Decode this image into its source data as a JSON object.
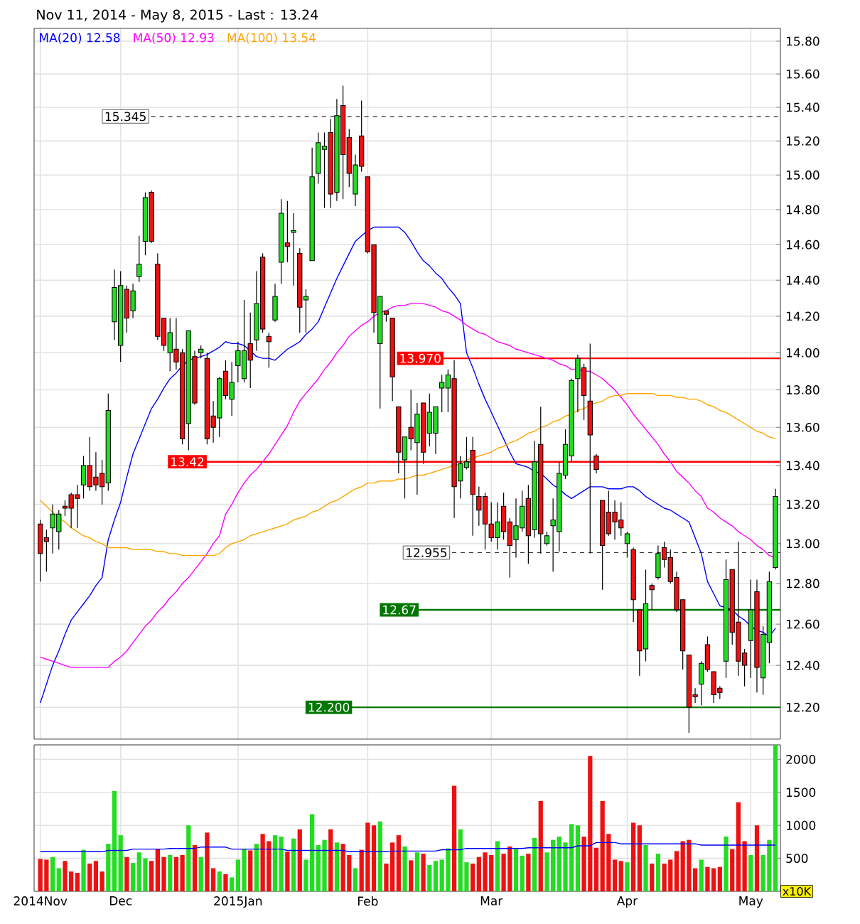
{
  "chart_data": [
    {
      "type": "candlestick",
      "title": "Nov 11, 2014 - May 8, 2015 - Last : 13.24",
      "categories": [
        null,
        null,
        null,
        null,
        null,
        null,
        null,
        null,
        null,
        null,
        null,
        null,
        null,
        null,
        null,
        null,
        null,
        null,
        null,
        null,
        null,
        null,
        null,
        null,
        null,
        null,
        null,
        null,
        null,
        null,
        null,
        null,
        null,
        null,
        null,
        null,
        null,
        null,
        null,
        null,
        null,
        null,
        null,
        null,
        null,
        null,
        null,
        null,
        null,
        null,
        null,
        null,
        null,
        null,
        null,
        null,
        null,
        null,
        null,
        null,
        null,
        null,
        null,
        null,
        null,
        null,
        null,
        null,
        null,
        null,
        null,
        null,
        null,
        null,
        null,
        null,
        null,
        null,
        null,
        null,
        null,
        null,
        null,
        null,
        null,
        null,
        null,
        null,
        null,
        null,
        null,
        null,
        null,
        null,
        null,
        null,
        null,
        null,
        null,
        null,
        null,
        null,
        null,
        null,
        null,
        null,
        null,
        null,
        null,
        null,
        null,
        null,
        null,
        null,
        null,
        null,
        null,
        null,
        null,
        null
      ],
      "ohlc": [
        [
          13.1,
          13.12,
          12.81,
          12.95
        ],
        [
          13.03,
          13.07,
          12.86,
          13.01
        ],
        [
          13.08,
          13.2,
          12.95,
          13.15
        ],
        [
          13.06,
          13.17,
          12.97,
          13.15
        ],
        [
          13.19,
          13.22,
          13.14,
          13.18
        ],
        [
          13.25,
          13.26,
          13.08,
          13.18
        ],
        [
          13.25,
          13.3,
          13.08,
          13.23
        ],
        [
          13.3,
          13.45,
          13.23,
          13.4
        ],
        [
          13.4,
          13.55,
          13.27,
          13.29
        ],
        [
          13.34,
          13.47,
          13.27,
          13.3
        ],
        [
          13.36,
          13.43,
          13.2,
          13.29
        ],
        [
          13.31,
          13.78,
          13.27,
          13.69
        ],
        [
          14.17,
          14.46,
          14.07,
          14.36
        ],
        [
          14.04,
          14.45,
          13.95,
          14.37
        ],
        [
          14.35,
          14.37,
          14.11,
          14.19
        ],
        [
          14.23,
          14.38,
          14.19,
          14.34
        ],
        [
          14.42,
          14.65,
          14.39,
          14.49
        ],
        [
          14.62,
          14.9,
          14.54,
          14.87
        ],
        [
          14.9,
          14.91,
          14.61,
          14.62
        ],
        [
          14.49,
          14.55,
          14.07,
          14.09
        ],
        [
          14.19,
          14.19,
          14.01,
          14.04
        ],
        [
          14.0,
          14.19,
          13.9,
          14.11
        ],
        [
          14.02,
          14.19,
          13.91,
          13.95
        ],
        [
          14.0,
          14.02,
          13.51,
          13.54
        ],
        [
          13.62,
          14.12,
          13.48,
          14.12
        ],
        [
          13.98,
          14.01,
          13.72,
          13.73
        ],
        [
          14.0,
          14.04,
          13.97,
          14.02
        ],
        [
          13.97,
          14.0,
          13.51,
          13.54
        ],
        [
          13.66,
          13.74,
          13.52,
          13.6
        ],
        [
          13.65,
          13.87,
          13.55,
          13.86
        ],
        [
          13.9,
          13.96,
          13.75,
          13.77
        ],
        [
          13.75,
          13.95,
          13.66,
          13.84
        ],
        [
          13.93,
          14.06,
          13.84,
          14.01
        ],
        [
          13.86,
          14.29,
          13.84,
          14.01
        ],
        [
          14.05,
          14.22,
          13.81,
          13.96
        ],
        [
          14.07,
          14.45,
          14.01,
          14.27
        ],
        [
          14.53,
          14.55,
          14.11,
          14.13
        ],
        [
          14.09,
          14.11,
          13.92,
          14.06
        ],
        [
          14.18,
          14.38,
          14.17,
          14.31
        ],
        [
          14.5,
          14.86,
          14.38,
          14.78
        ],
        [
          14.61,
          14.85,
          14.5,
          14.59
        ],
        [
          14.67,
          14.78,
          14.37,
          14.68
        ],
        [
          14.55,
          14.58,
          14.11,
          14.25
        ],
        [
          14.29,
          14.35,
          14.11,
          14.31
        ],
        [
          14.51,
          15.16,
          14.51,
          14.99
        ],
        [
          15.01,
          15.25,
          14.95,
          15.19
        ],
        [
          15.15,
          15.25,
          14.81,
          15.17
        ],
        [
          15.25,
          15.33,
          14.81,
          14.89
        ],
        [
          14.9,
          15.45,
          14.85,
          15.35
        ],
        [
          15.41,
          15.53,
          14.86,
          15.12
        ],
        [
          15.22,
          15.27,
          14.93,
          15.01
        ],
        [
          14.89,
          15.12,
          14.82,
          15.06
        ],
        [
          15.23,
          15.44,
          15.02,
          15.05
        ],
        [
          14.99,
          14.99,
          14.55,
          14.56
        ],
        [
          14.6,
          14.6,
          14.11,
          14.22
        ],
        [
          14.05,
          14.31,
          13.7,
          14.31
        ],
        [
          14.23,
          14.23,
          14.17,
          14.21
        ],
        [
          14.19,
          14.19,
          13.74,
          13.87
        ],
        [
          13.71,
          13.71,
          13.36,
          13.47
        ],
        [
          13.43,
          13.55,
          13.23,
          13.55
        ],
        [
          13.6,
          13.8,
          13.48,
          13.54
        ],
        [
          13.52,
          13.73,
          13.25,
          13.67
        ],
        [
          13.73,
          13.73,
          13.41,
          13.47
        ],
        [
          13.57,
          13.78,
          13.5,
          13.68
        ],
        [
          13.57,
          13.71,
          13.46,
          13.71
        ],
        [
          13.81,
          13.88,
          13.68,
          13.84
        ],
        [
          13.81,
          13.91,
          13.68,
          13.88
        ],
        [
          13.86,
          13.96,
          13.13,
          13.29
        ],
        [
          13.32,
          13.45,
          13.23,
          13.41
        ],
        [
          13.39,
          13.55,
          13.38,
          13.42
        ],
        [
          13.48,
          13.55,
          13.04,
          13.25
        ],
        [
          13.24,
          13.29,
          13.09,
          13.17
        ],
        [
          13.24,
          13.26,
          12.97,
          13.1
        ],
        [
          13.1,
          13.21,
          13.01,
          13.03
        ],
        [
          13.03,
          13.21,
          12.97,
          13.11
        ],
        [
          13.19,
          13.26,
          13.02,
          13.06
        ],
        [
          13.11,
          13.13,
          12.83,
          12.99
        ],
        [
          13.02,
          13.23,
          12.93,
          13.09
        ],
        [
          13.08,
          13.27,
          13.06,
          13.19
        ],
        [
          13.23,
          13.3,
          12.9,
          13.04
        ],
        [
          13.07,
          13.53,
          13.03,
          13.42
        ],
        [
          13.51,
          13.71,
          12.95,
          13.05
        ],
        [
          13.0,
          13.06,
          12.99,
          13.04
        ],
        [
          13.09,
          13.23,
          12.86,
          13.12
        ],
        [
          13.06,
          13.42,
          12.96,
          13.36
        ],
        [
          13.35,
          13.59,
          13.33,
          13.51
        ],
        [
          13.45,
          13.86,
          13.42,
          13.85
        ],
        [
          13.86,
          13.99,
          13.68,
          13.97
        ],
        [
          13.92,
          13.94,
          13.64,
          13.77
        ],
        [
          13.74,
          14.05,
          12.95,
          13.56
        ],
        [
          13.45,
          13.46,
          13.36,
          13.38
        ],
        [
          13.22,
          13.22,
          12.77,
          12.99
        ],
        [
          13.16,
          13.27,
          13.04,
          13.05
        ],
        [
          13.16,
          13.22,
          13.02,
          13.11
        ],
        [
          13.12,
          13.21,
          13.04,
          13.08
        ],
        [
          13.0,
          13.06,
          12.93,
          13.05
        ],
        [
          12.97,
          12.98,
          12.61,
          12.72
        ],
        [
          12.67,
          12.67,
          12.35,
          12.47
        ],
        [
          12.48,
          12.87,
          12.42,
          12.7
        ],
        [
          12.79,
          12.8,
          12.67,
          12.77
        ],
        [
          12.83,
          12.99,
          12.82,
          12.95
        ],
        [
          12.98,
          13.01,
          12.88,
          12.92
        ],
        [
          12.93,
          12.97,
          12.8,
          12.81
        ],
        [
          12.83,
          12.86,
          12.66,
          12.67
        ],
        [
          12.72,
          12.72,
          12.38,
          12.47
        ],
        [
          12.45,
          12.45,
          12.08,
          12.2
        ],
        [
          12.26,
          12.29,
          12.22,
          12.25
        ],
        [
          12.31,
          12.42,
          12.21,
          12.41
        ],
        [
          12.5,
          12.54,
          12.37,
          12.38
        ],
        [
          12.37,
          12.37,
          12.22,
          12.26
        ],
        [
          12.29,
          12.3,
          12.24,
          12.27
        ],
        [
          12.42,
          12.92,
          12.34,
          12.82
        ],
        [
          12.87,
          12.87,
          12.5,
          12.56
        ],
        [
          12.61,
          13.01,
          12.35,
          12.42
        ],
        [
          12.46,
          12.48,
          12.3,
          12.4
        ],
        [
          12.52,
          12.82,
          12.34,
          12.67
        ],
        [
          12.76,
          12.82,
          12.27,
          12.39
        ],
        [
          12.34,
          12.59,
          12.26,
          12.55
        ],
        [
          12.51,
          12.86,
          12.41,
          12.81
        ],
        [
          12.88,
          13.28,
          12.87,
          13.24
        ]
      ],
      "colors": [
        "#ee1111",
        "#ee1111",
        "#22dd22",
        "#22dd22",
        "#ee1111",
        "#ee1111",
        "#ee1111",
        "#22dd22",
        "#ee1111",
        "#ee1111",
        "#ee1111",
        "#22dd22",
        "#22dd22",
        "#22dd22",
        "#ee1111",
        "#22dd22",
        "#22dd22",
        "#22dd22",
        "#ee1111",
        "#ee1111",
        "#ee1111",
        "#22dd22",
        "#ee1111",
        "#ee1111",
        "#22dd22",
        "#ee1111",
        "#22dd22",
        "#ee1111",
        "#ee1111",
        "#22dd22",
        "#ee1111",
        "#22dd22",
        "#22dd22",
        "#22dd22",
        "#ee1111",
        "#22dd22",
        "#ee1111",
        "#ee1111",
        "#22dd22",
        "#22dd22",
        "#ee1111",
        "#22dd22",
        "#ee1111",
        "#22dd22",
        "#22dd22",
        "#22dd22",
        "#22dd22",
        "#ee1111",
        "#22dd22",
        "#ee1111",
        "#ee1111",
        "#22dd22",
        "#ee1111",
        "#ee1111",
        "#ee1111",
        "#22dd22",
        "#ee1111",
        "#ee1111",
        "#ee1111",
        "#22dd22",
        "#ee1111",
        "#22dd22",
        "#ee1111",
        "#22dd22",
        "#22dd22",
        "#22dd22",
        "#22dd22",
        "#ee1111",
        "#22dd22",
        "#22dd22",
        "#ee1111",
        "#ee1111",
        "#ee1111",
        "#ee1111",
        "#22dd22",
        "#ee1111",
        "#ee1111",
        "#22dd22",
        "#22dd22",
        "#ee1111",
        "#22dd22",
        "#ee1111",
        "#22dd22",
        "#22dd22",
        "#22dd22",
        "#22dd22",
        "#22dd22",
        "#22dd22",
        "#ee1111",
        "#ee1111",
        "#ee1111",
        "#ee1111",
        "#ee1111",
        "#ee1111",
        "#ee1111",
        "#22dd22",
        "#ee1111",
        "#ee1111",
        "#22dd22",
        "#ee1111",
        "#22dd22",
        "#ee1111",
        "#ee1111",
        "#ee1111",
        "#ee1111",
        "#ee1111",
        "#ee1111",
        "#22dd22",
        "#ee1111",
        "#ee1111",
        "#ee1111",
        "#22dd22",
        "#ee1111",
        "#ee1111",
        "#ee1111",
        "#22dd22",
        "#ee1111",
        "#22dd22",
        "#22dd22",
        "#22dd22"
      ],
      "series": [
        {
          "name": "MA(20)  12.58",
          "type": "line",
          "color": "#0000ff",
          "values": [
            12.22,
            12.31,
            12.4,
            12.47,
            12.55,
            12.62,
            12.66,
            12.7,
            12.74,
            12.79,
            12.83,
            13.02,
            13.12,
            13.21,
            13.34,
            13.46,
            13.54,
            13.62,
            13.7,
            13.75,
            13.81,
            13.86,
            13.89,
            13.93,
            13.96,
            13.97,
            13.98,
            13.99,
            14.01,
            14.03,
            14.06,
            14.05,
            14.05,
            14.04,
            14.01,
            13.98,
            13.97,
            13.97,
            13.96,
            13.99,
            14.02,
            14.04,
            14.06,
            14.1,
            14.13,
            14.17,
            14.25,
            14.33,
            14.41,
            14.48,
            14.55,
            14.62,
            14.65,
            14.68,
            14.7,
            14.7,
            14.7,
            14.7,
            14.7,
            14.67,
            14.62,
            14.56,
            14.51,
            14.48,
            14.44,
            14.41,
            14.36,
            14.32,
            14.27,
            14.0,
            13.92,
            13.83,
            13.75,
            13.68,
            13.61,
            13.54,
            13.47,
            13.41,
            13.4,
            13.39,
            13.37,
            13.36,
            13.33,
            13.3,
            13.28,
            13.25,
            13.23,
            13.25,
            13.27,
            13.29,
            13.29,
            13.29,
            13.28,
            13.28,
            13.28,
            13.29,
            13.29,
            13.27,
            13.24,
            13.22,
            13.2,
            13.18,
            13.17,
            13.15,
            13.13,
            13.11,
            13.03,
            12.95,
            12.81,
            12.75,
            12.69,
            12.68,
            12.67,
            12.64,
            12.62,
            12.59,
            12.57,
            12.56,
            12.54,
            12.58
          ]
        },
        {
          "name": "MA(50)  12.93",
          "type": "line",
          "color": "#ff00ff",
          "values": [
            12.44,
            12.43,
            12.42,
            12.41,
            12.4,
            12.39,
            12.39,
            12.39,
            12.39,
            12.39,
            12.39,
            12.39,
            12.42,
            12.44,
            12.47,
            12.51,
            12.55,
            12.59,
            12.62,
            12.66,
            12.69,
            12.73,
            12.76,
            12.8,
            12.83,
            12.87,
            12.91,
            12.95,
            13.0,
            13.04,
            13.15,
            13.2,
            13.26,
            13.31,
            13.35,
            13.38,
            13.42,
            13.46,
            13.51,
            13.56,
            13.61,
            13.68,
            13.74,
            13.78,
            13.82,
            13.86,
            13.91,
            13.95,
            14.0,
            14.04,
            14.09,
            14.12,
            14.15,
            14.17,
            14.2,
            14.22,
            14.23,
            14.25,
            14.26,
            14.26,
            14.27,
            14.27,
            14.27,
            14.26,
            14.25,
            14.23,
            14.22,
            14.2,
            14.18,
            14.15,
            14.13,
            14.11,
            14.1,
            14.08,
            14.06,
            14.05,
            14.04,
            14.02,
            14.01,
            14.0,
            13.99,
            13.98,
            13.97,
            13.96,
            13.94,
            13.93,
            13.91,
            13.91,
            13.9,
            13.9,
            13.88,
            13.86,
            13.83,
            13.8,
            13.76,
            13.72,
            13.67,
            13.63,
            13.59,
            13.55,
            13.51,
            13.46,
            13.42,
            13.37,
            13.34,
            13.31,
            13.27,
            13.24,
            13.18,
            13.16,
            13.13,
            13.11,
            13.09,
            13.06,
            13.04,
            13.02,
            12.99,
            12.97,
            12.94,
            12.93
          ]
        },
        {
          "name": "MA(100)  13.54",
          "type": "line",
          "color": "#ffa500",
          "values": [
            13.22,
            13.19,
            13.16,
            13.13,
            13.11,
            13.08,
            13.06,
            13.04,
            13.03,
            13.01,
            13.0,
            12.98,
            12.98,
            12.98,
            12.98,
            12.97,
            12.97,
            12.97,
            12.97,
            12.96,
            12.96,
            12.95,
            12.95,
            12.94,
            12.94,
            12.94,
            12.94,
            12.94,
            12.94,
            12.95,
            12.98,
            13.0,
            13.01,
            13.02,
            13.04,
            13.05,
            13.06,
            13.07,
            13.08,
            13.09,
            13.1,
            13.12,
            13.13,
            13.14,
            13.16,
            13.17,
            13.19,
            13.21,
            13.22,
            13.24,
            13.26,
            13.28,
            13.29,
            13.31,
            13.31,
            13.32,
            13.32,
            13.32,
            13.33,
            13.33,
            13.34,
            13.35,
            13.35,
            13.36,
            13.37,
            13.38,
            13.39,
            13.4,
            13.41,
            13.43,
            13.44,
            13.45,
            13.46,
            13.47,
            13.49,
            13.5,
            13.52,
            13.53,
            13.55,
            13.57,
            13.58,
            13.6,
            13.61,
            13.63,
            13.64,
            13.66,
            13.67,
            13.69,
            13.7,
            13.72,
            13.73,
            13.74,
            13.76,
            13.77,
            13.77,
            13.78,
            13.78,
            13.78,
            13.78,
            13.78,
            13.77,
            13.77,
            13.77,
            13.76,
            13.76,
            13.75,
            13.75,
            13.74,
            13.72,
            13.71,
            13.69,
            13.68,
            13.66,
            13.64,
            13.62,
            13.6,
            13.58,
            13.57,
            13.55,
            13.54
          ]
        }
      ],
      "log": true,
      "ylim": [
        12.05,
        15.88
      ],
      "yticks": [
        {
          "value": 12.2,
          "label": "12.20"
        },
        {
          "value": 12.4,
          "label": "12.40"
        },
        {
          "value": 12.6,
          "label": "12.60"
        },
        {
          "value": 12.8,
          "label": "12.80"
        },
        {
          "value": 13,
          "label": "13.00"
        },
        {
          "value": 13.2,
          "label": "13.20"
        },
        {
          "value": 13.4,
          "label": "13.40"
        },
        {
          "value": 13.6,
          "label": "13.60"
        },
        {
          "value": 13.8,
          "label": "13.80"
        },
        {
          "value": 14,
          "label": "14.00"
        },
        {
          "value": 14.2,
          "label": "14.20"
        },
        {
          "value": 14.4,
          "label": "14.40"
        },
        {
          "value": 14.6,
          "label": "14.60"
        },
        {
          "value": 14.8,
          "label": "14.80"
        },
        {
          "value": 15,
          "label": "15.00"
        },
        {
          "value": 15.2,
          "label": "15.20"
        },
        {
          "value": 15.4,
          "label": "15.40"
        },
        {
          "value": 15.6,
          "label": "15.60"
        },
        {
          "value": 15.8,
          "label": "15.80"
        }
      ],
      "grid": true,
      "legend": "top left",
      "tick_labels": "y",
      "ref_lines": [
        {
          "axis": "y",
          "value": 15.345,
          "label": "15.345",
          "color": "#333333",
          "line_style": "dashed"
        },
        {
          "axis": "y",
          "value": 13.97,
          "label": "13.970",
          "color": "#ff0000"
        },
        {
          "axis": "y",
          "value": 13.42,
          "label": "13.42",
          "color": "#ff0000"
        },
        {
          "axis": "y",
          "value": 12.955,
          "label": "12.955",
          "color": "#333333",
          "line_style": "dashed"
        },
        {
          "axis": "y",
          "value": 12.67,
          "label": "12.67",
          "color": "#007700"
        },
        {
          "axis": "y",
          "value": 12.2,
          "label": "12.200",
          "color": "#007700"
        }
      ]
    },
    {
      "type": "bar",
      "categories": [
        "2014Nov",
        null,
        null,
        null,
        null,
        null,
        null,
        null,
        null,
        null,
        null,
        null,
        null,
        "Dec",
        null,
        null,
        null,
        null,
        null,
        null,
        null,
        null,
        null,
        null,
        null,
        null,
        null,
        null,
        null,
        null,
        null,
        null,
        "2015Jan",
        null,
        null,
        null,
        null,
        null,
        null,
        null,
        null,
        null,
        null,
        null,
        null,
        null,
        null,
        null,
        null,
        null,
        null,
        null,
        null,
        "Feb",
        null,
        null,
        null,
        null,
        null,
        null,
        null,
        null,
        null,
        null,
        null,
        null,
        null,
        null,
        null,
        null,
        null,
        null,
        null,
        "Mar",
        null,
        null,
        null,
        null,
        null,
        null,
        null,
        null,
        null,
        null,
        null,
        null,
        null,
        null,
        null,
        null,
        null,
        null,
        null,
        null,
        null,
        "Apr",
        null,
        null,
        null,
        null,
        null,
        null,
        null,
        null,
        null,
        null,
        null,
        null,
        null,
        null,
        null,
        null,
        null,
        null,
        null,
        "May",
        null,
        null,
        null,
        null
      ],
      "series": [
        {
          "values": [
            490,
            480,
            520,
            350,
            460,
            300,
            280,
            630,
            420,
            460,
            300,
            720,
            1520,
            850,
            520,
            430,
            590,
            500,
            460,
            640,
            520,
            550,
            520,
            550,
            1000,
            700,
            520,
            890,
            350,
            300,
            260,
            210,
            480,
            640,
            620,
            720,
            870,
            760,
            850,
            830,
            600,
            800,
            940,
            480,
            1170,
            700,
            780,
            940,
            740,
            720,
            550,
            350,
            630,
            1040,
            1000,
            1060,
            420,
            740,
            850,
            680,
            470,
            590,
            570,
            400,
            460,
            480,
            650,
            1600,
            940,
            440,
            420,
            520,
            590,
            550,
            760,
            570,
            680,
            640,
            540,
            570,
            810,
            1370,
            590,
            780,
            830,
            740,
            1020,
            1000,
            830,
            2050,
            660,
            1370,
            870,
            480,
            460,
            440,
            1040,
            1000,
            700,
            420,
            570,
            420,
            480,
            610,
            760,
            780,
            350,
            480,
            370,
            350,
            370,
            830,
            640,
            1350,
            760,
            550,
            1000,
            550,
            780,
            2220
          ],
          "colors": [
            "#ee1111",
            "#ee1111",
            "#22dd22",
            "#22dd22",
            "#ee1111",
            "#ee1111",
            "#ee1111",
            "#22dd22",
            "#ee1111",
            "#ee1111",
            "#ee1111",
            "#22dd22",
            "#22dd22",
            "#22dd22",
            "#ee1111",
            "#22dd22",
            "#22dd22",
            "#22dd22",
            "#ee1111",
            "#ee1111",
            "#ee1111",
            "#22dd22",
            "#ee1111",
            "#ee1111",
            "#22dd22",
            "#ee1111",
            "#22dd22",
            "#ee1111",
            "#ee1111",
            "#22dd22",
            "#ee1111",
            "#22dd22",
            "#22dd22",
            "#22dd22",
            "#ee1111",
            "#22dd22",
            "#ee1111",
            "#ee1111",
            "#22dd22",
            "#22dd22",
            "#ee1111",
            "#22dd22",
            "#ee1111",
            "#22dd22",
            "#22dd22",
            "#22dd22",
            "#22dd22",
            "#ee1111",
            "#22dd22",
            "#ee1111",
            "#ee1111",
            "#22dd22",
            "#ee1111",
            "#ee1111",
            "#ee1111",
            "#22dd22",
            "#ee1111",
            "#ee1111",
            "#ee1111",
            "#22dd22",
            "#ee1111",
            "#22dd22",
            "#ee1111",
            "#22dd22",
            "#22dd22",
            "#22dd22",
            "#22dd22",
            "#ee1111",
            "#22dd22",
            "#22dd22",
            "#ee1111",
            "#ee1111",
            "#ee1111",
            "#ee1111",
            "#22dd22",
            "#ee1111",
            "#ee1111",
            "#22dd22",
            "#22dd22",
            "#ee1111",
            "#22dd22",
            "#ee1111",
            "#22dd22",
            "#22dd22",
            "#22dd22",
            "#22dd22",
            "#22dd22",
            "#22dd22",
            "#ee1111",
            "#ee1111",
            "#ee1111",
            "#ee1111",
            "#ee1111",
            "#ee1111",
            "#ee1111",
            "#22dd22",
            "#ee1111",
            "#ee1111",
            "#22dd22",
            "#ee1111",
            "#22dd22",
            "#ee1111",
            "#ee1111",
            "#ee1111",
            "#ee1111",
            "#ee1111",
            "#ee1111",
            "#22dd22",
            "#ee1111",
            "#ee1111",
            "#ee1111",
            "#22dd22",
            "#ee1111",
            "#ee1111",
            "#ee1111",
            "#22dd22",
            "#ee1111",
            "#22dd22",
            "#22dd22",
            "#22dd22"
          ]
        },
        {
          "type": "line",
          "color": "#0000ff",
          "values": [
            600,
            600,
            600,
            600,
            600,
            600,
            600,
            600,
            600,
            600,
            600,
            620,
            620,
            620,
            620,
            640,
            640,
            640,
            640,
            640,
            640,
            650,
            650,
            650,
            650,
            650,
            670,
            670,
            670,
            670,
            670,
            640,
            640,
            640,
            640,
            640,
            640,
            640,
            640,
            640,
            620,
            620,
            620,
            620,
            620,
            620,
            620,
            620,
            620,
            620,
            600,
            600,
            600,
            600,
            600,
            600,
            600,
            610,
            610,
            610,
            610,
            610,
            610,
            610,
            610,
            630,
            630,
            630,
            630,
            650,
            650,
            650,
            650,
            650,
            650,
            650,
            650,
            650,
            650,
            660,
            660,
            660,
            660,
            660,
            660,
            660,
            660,
            690,
            690,
            690,
            740,
            740,
            740,
            740,
            720,
            720,
            720,
            720,
            720,
            720,
            720,
            720,
            720,
            720,
            720,
            720,
            720,
            700,
            700,
            700,
            700,
            700,
            700,
            700,
            700,
            700,
            700,
            700,
            700,
            700
          ]
        }
      ],
      "ylim": [
        0,
        2220
      ],
      "yticks": [
        500,
        1000,
        1500,
        2000
      ],
      "grid": true,
      "annotations": [
        "x10K"
      ]
    }
  ]
}
